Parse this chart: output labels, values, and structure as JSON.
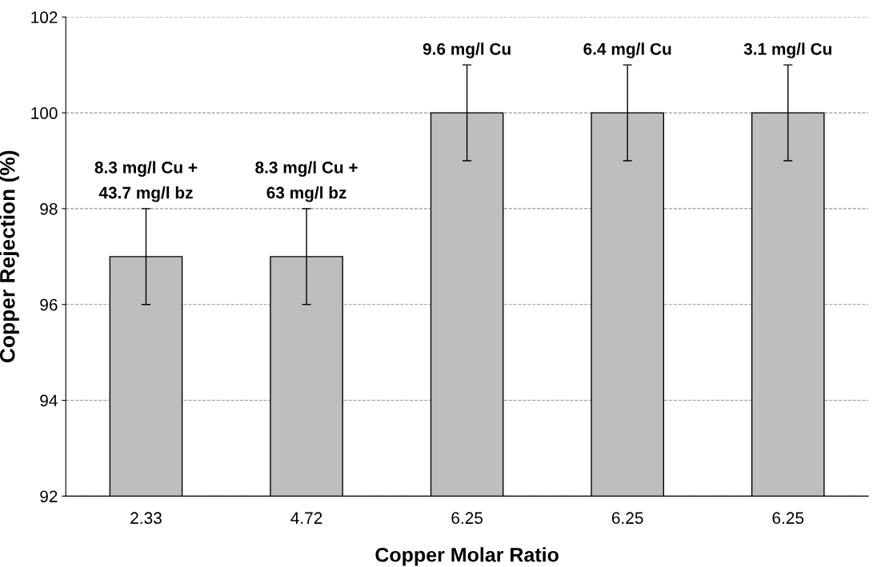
{
  "chart_data": {
    "type": "bar",
    "xlabel": "Copper Molar Ratio",
    "ylabel": "Copper Rejection (%)",
    "categories": [
      "2.33",
      "4.72",
      "6.25",
      "6.25",
      "6.25"
    ],
    "values": [
      97,
      97,
      100,
      100,
      100
    ],
    "errors": [
      1,
      1,
      1,
      1,
      1
    ],
    "color": "#bebebe",
    "annotations": [
      "8.3 mg/l Cu +\n43.7 mg/l bz",
      "8.3 mg/l Cu +\n63 mg/l bz",
      "9.6 mg/l Cu",
      "6.4 mg/l Cu",
      "3.1 mg/l Cu"
    ],
    "ylim": [
      92,
      102
    ],
    "yticks": [
      92,
      94,
      96,
      98,
      100,
      102
    ],
    "grid": "y",
    "line_style": "dashed"
  }
}
